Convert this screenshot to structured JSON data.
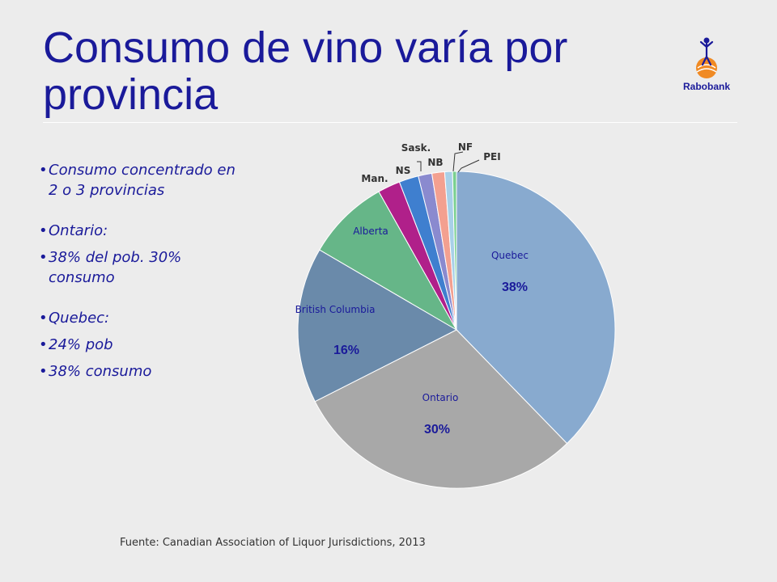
{
  "slide": {
    "title": "Consumo de vino varía por provincia",
    "logo_text": "Rabobank",
    "source": "Fuente: Canadian Association of Liquor Jurisdictions, 2013"
  },
  "bullets": [
    "Consumo concentrado en 2 o 3 provincias",
    "Ontario:",
    "38% del pob. 30% consumo",
    "Quebec:",
    "24% pob",
    "38% consumo"
  ],
  "colors": {
    "title": "#1a1a9a",
    "logo_orange": "#f08a24"
  },
  "chart_data": {
    "type": "pie",
    "start_angle_deg": 0,
    "direction": "clockwise",
    "slices": [
      {
        "label": "Quebec",
        "value": 38,
        "value_label": "38%",
        "color": "#88aacf"
      },
      {
        "label": "Ontario",
        "value": 30,
        "value_label": "30%",
        "color": "#a8a8a8"
      },
      {
        "label": "British Columbia",
        "value": 16,
        "value_label": "16%",
        "color": "#6a8aaa"
      },
      {
        "label": "Alberta",
        "value": 8.5,
        "value_label": "",
        "color": "#66b688"
      },
      {
        "label": "Man.",
        "value": 2.3,
        "value_label": "",
        "color": "#b0208a"
      },
      {
        "label": "NS",
        "value": 2,
        "value_label": "",
        "color": "#3f7fcf"
      },
      {
        "label": "Sask.",
        "value": 1.4,
        "value_label": "",
        "color": "#8a8acf"
      },
      {
        "label": "NB",
        "value": 1.3,
        "value_label": "",
        "color": "#f3a090"
      },
      {
        "label": "NF",
        "value": 0.8,
        "value_label": "",
        "color": "#a8d0e8"
      },
      {
        "label": "PEI",
        "value": 0.4,
        "value_label": "",
        "color": "#7ad090"
      }
    ]
  }
}
